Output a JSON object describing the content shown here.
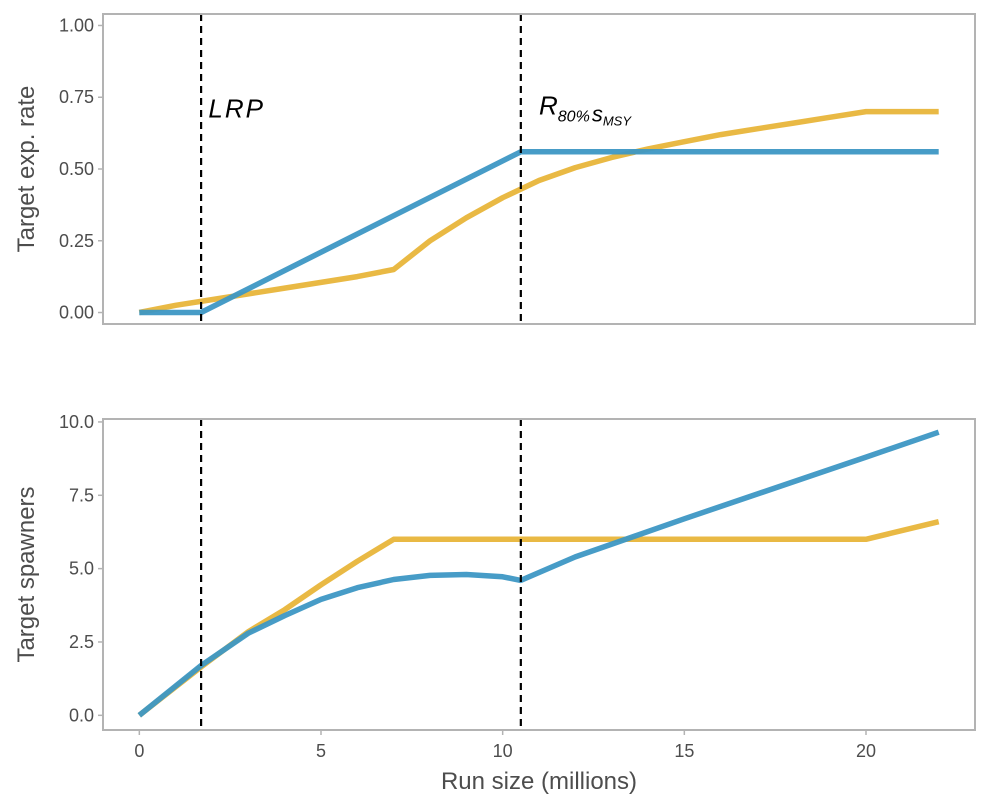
{
  "chart_data": [
    {
      "type": "line",
      "ylabel": "Target exp. rate",
      "xlim": [
        -1,
        23
      ],
      "ylim": [
        -0.04,
        1.04
      ],
      "yticks": [
        0.0,
        0.25,
        0.5,
        0.75,
        1.0
      ],
      "ytick_labels": [
        "0.00",
        "0.25",
        "0.50",
        "0.75",
        "1.00"
      ],
      "vlines": [
        1.7,
        10.5
      ],
      "annotations": [
        {
          "text": "LRP",
          "x": 1.9,
          "y": 0.68
        },
        {
          "text": "R",
          "sub": "80%",
          "sub2": "S",
          "sub3": "MSY",
          "x": 11.0,
          "y": 0.69
        }
      ],
      "series": [
        {
          "color": "#E8B53A",
          "x": [
            0,
            1,
            2,
            3,
            4,
            5,
            6,
            7,
            8,
            9,
            10,
            11,
            12,
            13,
            14,
            15,
            16,
            17,
            18,
            19,
            20,
            21,
            22
          ],
          "y": [
            0.0,
            0.025,
            0.045,
            0.065,
            0.085,
            0.105,
            0.125,
            0.15,
            0.25,
            0.33,
            0.4,
            0.46,
            0.505,
            0.54,
            0.57,
            0.595,
            0.62,
            0.64,
            0.66,
            0.68,
            0.7,
            0.7,
            0.7
          ]
        },
        {
          "color": "#3D97C4",
          "x": [
            0,
            1.7,
            10.5,
            22
          ],
          "y": [
            0.0,
            0.0,
            0.56,
            0.56
          ]
        }
      ]
    },
    {
      "type": "line",
      "ylabel": "Target spawners",
      "xlabel": "Run size (millions)",
      "xlim": [
        -1,
        23
      ],
      "ylim": [
        -0.5,
        10.1
      ],
      "xticks": [
        0,
        5,
        10,
        15,
        20
      ],
      "xtick_labels": [
        "0",
        "5",
        "10",
        "15",
        "20"
      ],
      "yticks": [
        0.0,
        2.5,
        5.0,
        7.5,
        10.0
      ],
      "ytick_labels": [
        "0.0",
        "2.5",
        "5.0",
        "7.5",
        "10.0"
      ],
      "vlines": [
        1.7,
        10.5
      ],
      "series": [
        {
          "color": "#E8B53A",
          "x": [
            0,
            1.7,
            3,
            4,
            5,
            6,
            7,
            10,
            15,
            20,
            22
          ],
          "y": [
            0.0,
            1.65,
            2.85,
            3.6,
            4.45,
            5.25,
            6.0,
            6.0,
            6.0,
            6.0,
            6.6
          ]
        },
        {
          "color": "#3D97C4",
          "x": [
            0,
            1.7,
            3,
            4,
            5,
            6,
            7,
            8,
            9,
            10,
            10.5,
            12,
            15,
            20,
            22
          ],
          "y": [
            0.0,
            1.7,
            2.8,
            3.4,
            3.95,
            4.35,
            4.63,
            4.77,
            4.8,
            4.72,
            4.6,
            5.4,
            6.7,
            8.8,
            9.65
          ]
        }
      ]
    }
  ]
}
